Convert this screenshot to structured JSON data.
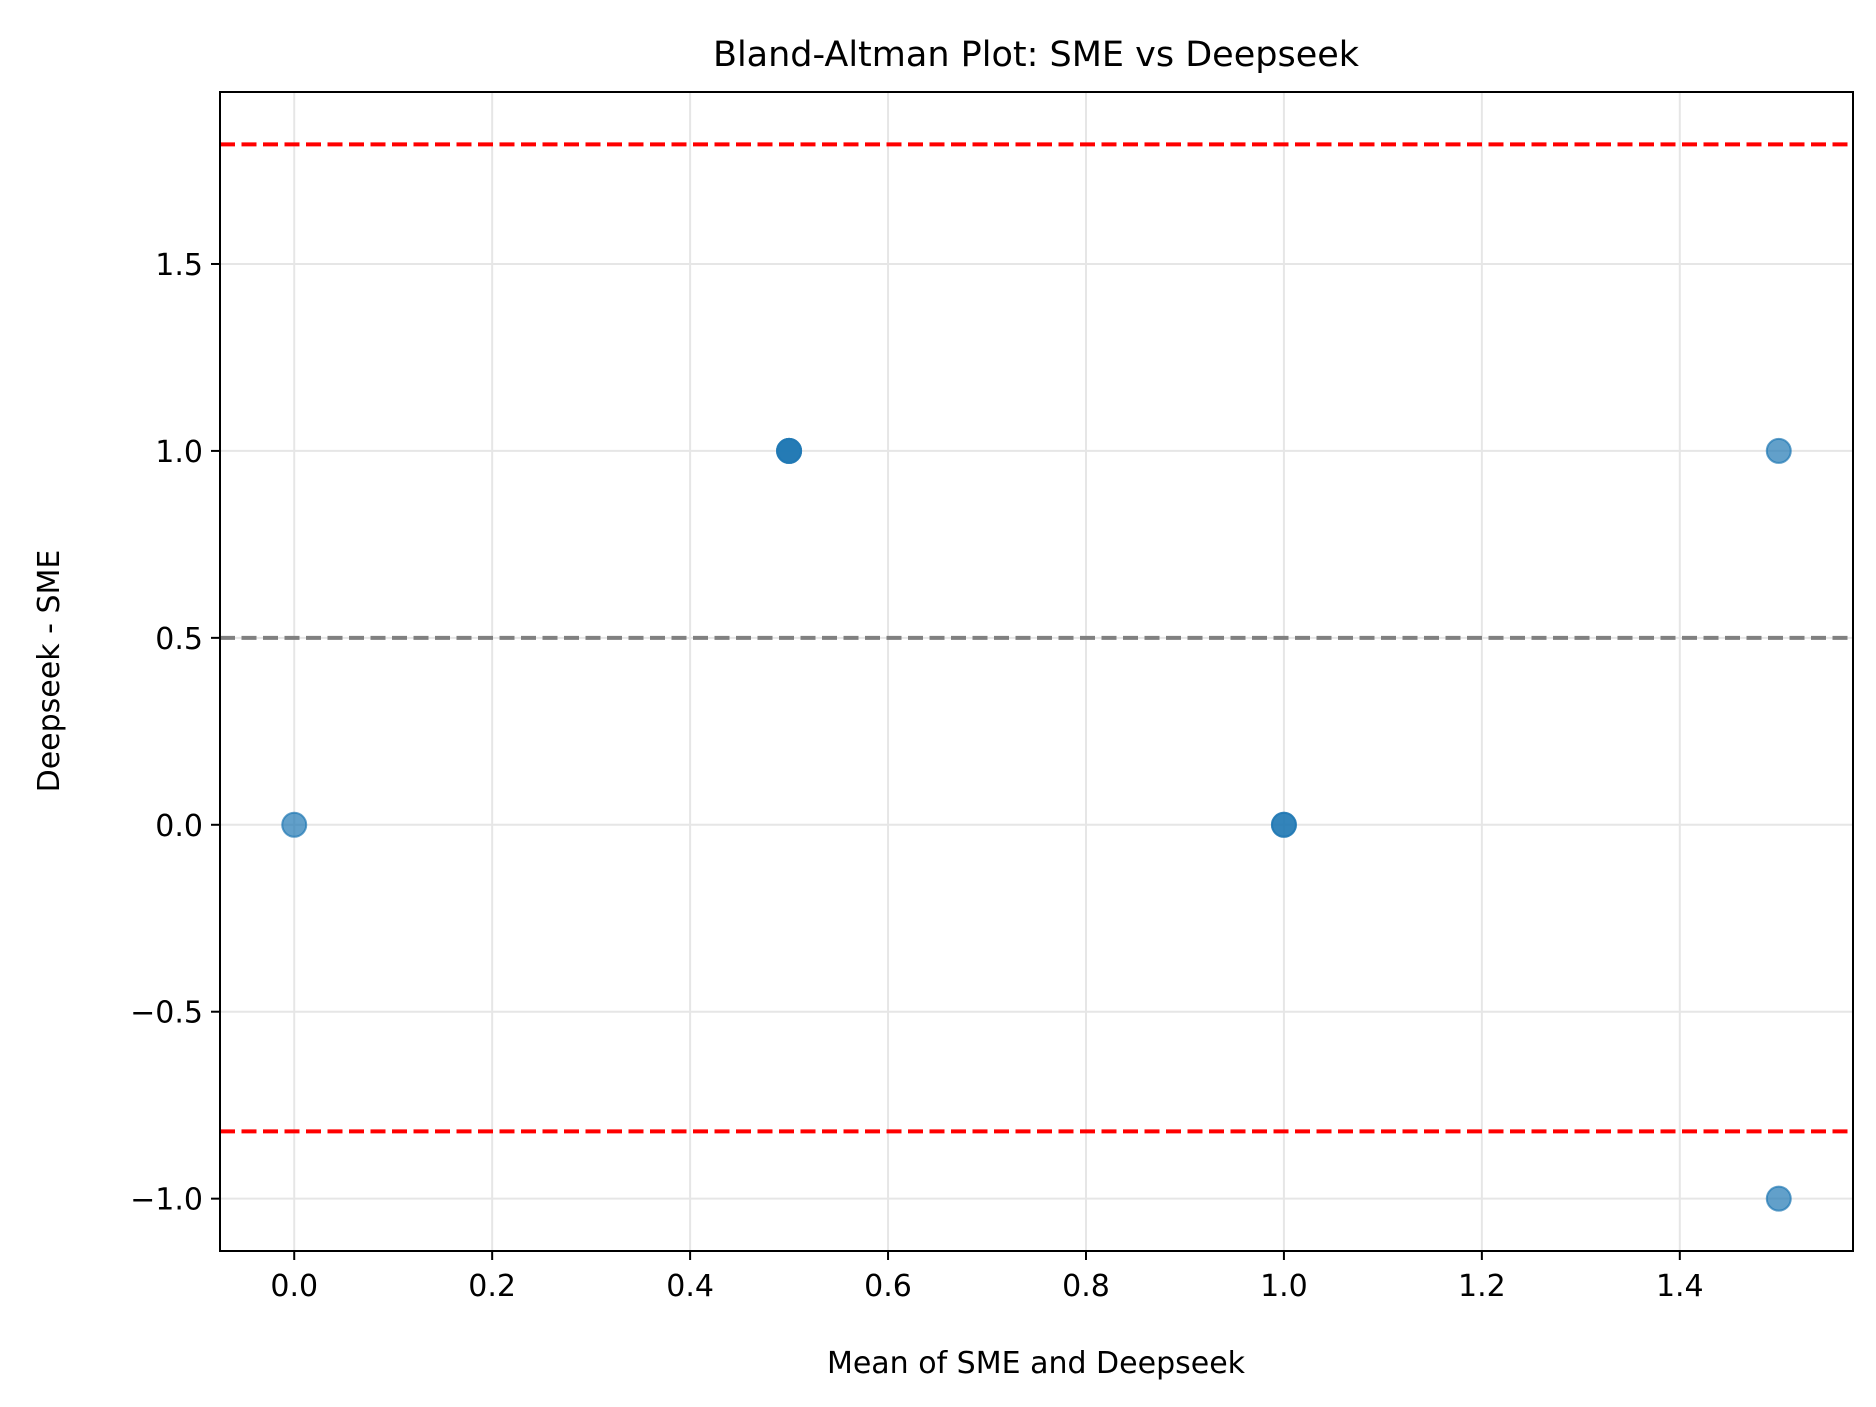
{
  "chart_data": {
    "type": "scatter",
    "title": "Bland-Altman Plot: SME vs Deepseek",
    "xlabel": "Mean of SME and Deepseek",
    "ylabel": "Deepseek - SME",
    "xlim": [
      -0.075,
      1.575
    ],
    "ylim": [
      -1.14,
      1.96
    ],
    "xticks": [
      0.0,
      0.2,
      0.4,
      0.6,
      0.8,
      1.0,
      1.2,
      1.4
    ],
    "xtick_labels": [
      "0.0",
      "0.2",
      "0.4",
      "0.6",
      "0.8",
      "1.0",
      "1.2",
      "1.4"
    ],
    "yticks": [
      -1.0,
      -0.5,
      0.0,
      0.5,
      1.0,
      1.5
    ],
    "ytick_labels": [
      "−1.0",
      "−0.5",
      "0.0",
      "0.5",
      "1.0",
      "1.5"
    ],
    "grid": true,
    "points": [
      {
        "x": 0.0,
        "y": 0.0,
        "count": 1
      },
      {
        "x": 0.5,
        "y": 1.0,
        "count": 3
      },
      {
        "x": 1.0,
        "y": 0.0,
        "count": 2
      },
      {
        "x": 1.5,
        "y": 1.0,
        "count": 1
      },
      {
        "x": 1.5,
        "y": -1.0,
        "count": 1
      }
    ],
    "reference_lines": [
      {
        "name": "mean-difference-line",
        "y": 0.5,
        "color": "#808080",
        "style": "dashed"
      },
      {
        "name": "upper-limit-line",
        "y": 1.82,
        "color": "#ff0000",
        "style": "dashed"
      },
      {
        "name": "lower-limit-line",
        "y": -0.82,
        "color": "#ff0000",
        "style": "dashed"
      }
    ],
    "point_color": "#1f77b4"
  }
}
